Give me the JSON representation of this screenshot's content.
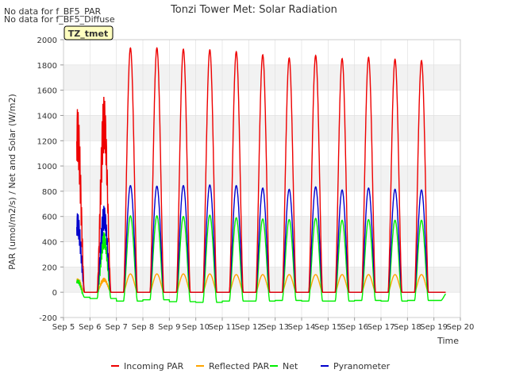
{
  "chart_data": {
    "type": "line",
    "title": "Tonzi Tower Met: Solar Radiation",
    "xlabel": "Time",
    "ylabel": "PAR (umol/m2/s) / Net and Solar (W/m2)",
    "xlim": [
      5,
      20
    ],
    "ylim": [
      -200,
      2000
    ],
    "x_ticks": [
      5,
      6,
      7,
      8,
      9,
      10,
      11,
      12,
      13,
      14,
      15,
      16,
      17,
      18,
      19,
      20
    ],
    "x_tick_labels": [
      "Sep 5",
      "Sep 6",
      "Sep 7",
      "Sep 8",
      "Sep 9",
      "Sep 10",
      "Sep 11",
      "Sep 12",
      "Sep 13",
      "Sep 14",
      "Sep 15",
      "Sep 16",
      "Sep 17",
      "Sep 18",
      "Sep 19",
      "Sep 20"
    ],
    "y_ticks": [
      -200,
      0,
      200,
      400,
      600,
      800,
      1000,
      1200,
      1400,
      1600,
      1800,
      2000
    ],
    "y_tick_labels": [
      "-200",
      "0",
      "200",
      "400",
      "600",
      "800",
      "1000",
      "1200",
      "1400",
      "1600",
      "1800",
      "2000"
    ],
    "grid": true,
    "legend_position": "bottom",
    "notes": [
      "No data for f_BF5_PAR",
      "No data for f_BF5_Diffuse"
    ],
    "badge": "TZ_tmet",
    "daily_peaks": {
      "days": [
        "Sep 5",
        "Sep 6",
        "Sep 7",
        "Sep 8",
        "Sep 9",
        "Sep 10",
        "Sep 11",
        "Sep 12",
        "Sep 13",
        "Sep 14",
        "Sep 15",
        "Sep 16",
        "Sep 17",
        "Sep 18",
        "Sep 19"
      ],
      "incoming_par": [
        1460,
        1560,
        1935,
        1935,
        1925,
        1920,
        1905,
        1880,
        1855,
        1875,
        1850,
        1860,
        1845,
        1835,
        0
      ],
      "reflected_par": [
        110,
        115,
        145,
        145,
        145,
        145,
        140,
        140,
        140,
        140,
        140,
        140,
        140,
        140,
        0
      ],
      "net": [
        100,
        480,
        605,
        605,
        600,
        610,
        590,
        580,
        575,
        585,
        570,
        575,
        570,
        570,
        0
      ],
      "pyranometer": [
        630,
        690,
        845,
        840,
        845,
        850,
        845,
        825,
        815,
        835,
        810,
        825,
        815,
        810,
        0
      ],
      "night_net": [
        -40,
        -50,
        -70,
        -60,
        -75,
        -80,
        -70,
        -70,
        -65,
        -70,
        -70,
        -65,
        -70,
        -65,
        -65
      ]
    },
    "series": [
      {
        "name": "Incoming PAR",
        "color": "#ee0000"
      },
      {
        "name": "Reflected PAR",
        "color": "#ffa500"
      },
      {
        "name": "Net",
        "color": "#00ee00"
      },
      {
        "name": "Pyranometer",
        "color": "#0000cc"
      }
    ]
  }
}
